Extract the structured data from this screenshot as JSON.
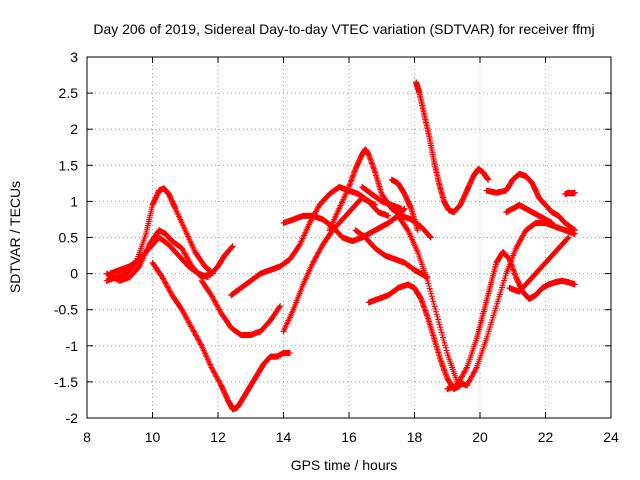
{
  "chart_data": {
    "type": "scatter",
    "title": "Day 206 of 2019, Sidereal Day-to-day VTEC variation (SDTVAR) for receiver ffmj",
    "xlabel": "GPS time / hours",
    "ylabel": "SDTVAR / TECUs",
    "xlim": [
      8,
      24
    ],
    "ylim": [
      -2,
      3
    ],
    "xticks": [
      8,
      10,
      12,
      14,
      16,
      18,
      20,
      22,
      24
    ],
    "yticks": [
      -2,
      -1.5,
      -1,
      -0.5,
      0,
      0.5,
      1,
      1.5,
      2,
      2.5,
      3
    ],
    "grid": true,
    "marker": "plus",
    "color": "#ff0000",
    "series": [
      {
        "x": [
          8.6,
          8.9,
          9.2,
          9.5,
          9.8,
          10.0,
          10.2,
          10.35,
          10.5,
          10.7,
          11.0,
          11.3,
          11.6,
          11.85
        ],
        "y": [
          -0.1,
          -0.05,
          0.0,
          0.15,
          0.55,
          0.95,
          1.15,
          1.18,
          1.1,
          0.9,
          0.6,
          0.3,
          0.1,
          0.0
        ]
      },
      {
        "x": [
          8.6,
          9.0,
          9.3,
          9.6,
          9.9,
          10.2,
          10.4,
          10.6,
          10.9,
          11.2,
          11.5,
          11.8,
          12.0,
          12.2,
          12.45
        ],
        "y": [
          0.0,
          -0.1,
          -0.05,
          0.1,
          0.4,
          0.6,
          0.55,
          0.45,
          0.35,
          0.1,
          -0.05,
          0.0,
          0.1,
          0.25,
          0.38
        ]
      },
      {
        "x": [
          8.7,
          9.0,
          9.3,
          9.6,
          9.9,
          10.2,
          10.5,
          10.8,
          11.1,
          11.4,
          11.7
        ],
        "y": [
          0.0,
          0.05,
          0.1,
          0.2,
          0.35,
          0.5,
          0.4,
          0.25,
          0.1,
          0.0,
          -0.05
        ]
      },
      {
        "x": [
          10.0,
          10.3,
          10.6,
          10.9,
          11.2,
          11.5,
          11.8,
          12.1,
          12.3,
          12.45,
          12.6,
          12.8,
          13.0,
          13.2,
          13.4,
          13.6,
          13.8,
          14.0,
          14.2
        ],
        "y": [
          0.15,
          -0.05,
          -0.3,
          -0.5,
          -0.75,
          -1.0,
          -1.3,
          -1.55,
          -1.75,
          -1.88,
          -1.85,
          -1.7,
          -1.55,
          -1.4,
          -1.25,
          -1.15,
          -1.15,
          -1.1,
          -1.1
        ]
      },
      {
        "x": [
          11.5,
          11.8,
          12.1,
          12.4,
          12.7,
          13.0,
          13.3,
          13.6,
          13.9
        ],
        "y": [
          -0.1,
          -0.3,
          -0.55,
          -0.75,
          -0.85,
          -0.85,
          -0.8,
          -0.65,
          -0.45
        ]
      },
      {
        "x": [
          12.4,
          12.7,
          13.0,
          13.3,
          13.6,
          13.9,
          14.2,
          14.5,
          14.8,
          15.1,
          15.4,
          15.7,
          16.0,
          16.3,
          16.6,
          16.9,
          17.2
        ],
        "y": [
          -0.3,
          -0.2,
          -0.1,
          0.0,
          0.05,
          0.1,
          0.2,
          0.4,
          0.7,
          0.95,
          1.1,
          1.2,
          1.15,
          1.1,
          1.0,
          0.85,
          0.8
        ]
      },
      {
        "x": [
          14.0,
          14.3,
          14.6,
          14.9,
          15.2,
          15.5,
          15.8,
          16.1,
          16.4,
          16.6,
          16.8,
          17.0,
          17.2,
          17.5,
          17.7
        ],
        "y": [
          0.7,
          0.75,
          0.8,
          0.8,
          0.75,
          0.65,
          0.5,
          0.45,
          0.5,
          0.55,
          0.6,
          0.65,
          0.7,
          0.8,
          0.9
        ]
      },
      {
        "x": [
          14.0,
          14.3,
          14.6,
          14.9,
          15.2,
          15.5,
          15.8,
          16.1,
          16.4,
          16.6,
          16.8
        ],
        "y": [
          -0.8,
          -0.5,
          -0.15,
          0.15,
          0.4,
          0.6,
          0.75,
          0.9,
          1.05,
          1.0,
          0.95
        ]
      },
      {
        "x": [
          15.4,
          15.7,
          16.0,
          16.2,
          16.4,
          16.5,
          16.6,
          16.8,
          17.0,
          17.3,
          17.6,
          17.9,
          18.2,
          18.5
        ],
        "y": [
          0.6,
          0.9,
          1.2,
          1.45,
          1.65,
          1.72,
          1.65,
          1.4,
          1.1,
          0.9,
          0.8,
          0.75,
          0.65,
          0.5
        ]
      },
      {
        "x": [
          16.2,
          16.5,
          16.8,
          17.1,
          17.4,
          17.7,
          18.0,
          18.2,
          18.4
        ],
        "y": [
          0.6,
          0.5,
          0.35,
          0.25,
          0.2,
          0.15,
          0.05,
          0.0,
          -0.05
        ]
      },
      {
        "x": [
          16.4,
          16.7,
          17.0,
          17.3,
          17.6
        ],
        "y": [
          1.2,
          1.1,
          1.0,
          0.95,
          0.9
        ]
      },
      {
        "x": [
          17.3,
          17.5,
          17.7,
          17.9,
          18.1
        ],
        "y": [
          1.3,
          1.25,
          1.1,
          0.9,
          0.6
        ]
      },
      {
        "x": [
          16.6,
          16.9,
          17.2,
          17.5,
          17.8,
          18.0,
          18.2,
          18.4,
          18.6,
          18.8,
          19.0,
          19.2,
          19.4
        ],
        "y": [
          -0.4,
          -0.35,
          -0.3,
          -0.2,
          -0.15,
          -0.2,
          -0.35,
          -0.6,
          -0.9,
          -1.2,
          -1.45,
          -1.6,
          -1.55
        ]
      },
      {
        "x": [
          17.5,
          17.8,
          18.1,
          18.4,
          18.7,
          19.0,
          19.3,
          19.6,
          19.9,
          20.2,
          20.5,
          20.8,
          21.1,
          21.4,
          21.7,
          22.0,
          22.3,
          22.6,
          22.9
        ],
        "y": [
          0.8,
          0.6,
          0.3,
          -0.1,
          -0.6,
          -1.1,
          -1.5,
          -1.55,
          -1.3,
          -0.9,
          -0.45,
          0.0,
          0.35,
          0.6,
          0.7,
          0.7,
          0.65,
          0.6,
          0.55
        ]
      },
      {
        "x": [
          18.05,
          18.15,
          18.3,
          18.45,
          18.6,
          18.75,
          18.9,
          19.05,
          19.2,
          19.4,
          19.6,
          19.8,
          19.95,
          20.1,
          20.25
        ],
        "y": [
          2.65,
          2.5,
          2.2,
          1.9,
          1.55,
          1.25,
          1.0,
          0.88,
          0.85,
          0.95,
          1.15,
          1.35,
          1.45,
          1.4,
          1.3
        ]
      },
      {
        "x": [
          20.2,
          20.5,
          20.8,
          21.0,
          21.2,
          21.4,
          21.6,
          21.8,
          22.0,
          22.2,
          22.4,
          22.6,
          22.9
        ],
        "y": [
          1.15,
          1.12,
          1.15,
          1.3,
          1.38,
          1.35,
          1.25,
          1.05,
          0.95,
          0.85,
          0.8,
          0.7,
          0.6
        ]
      },
      {
        "x": [
          20.8,
          21.0,
          21.2,
          21.4,
          21.6,
          21.8,
          22.0,
          22.2
        ],
        "y": [
          0.85,
          0.9,
          0.95,
          0.9,
          0.85,
          0.8,
          0.75,
          0.7
        ]
      },
      {
        "x": [
          19.0,
          19.3,
          19.6,
          19.9,
          20.1,
          20.3,
          20.5,
          20.7,
          20.9,
          21.1,
          21.3,
          21.5,
          21.7,
          21.9,
          22.1,
          22.3,
          22.5,
          22.7,
          22.9
        ],
        "y": [
          -1.6,
          -1.55,
          -1.3,
          -0.9,
          -0.55,
          -0.2,
          0.15,
          0.3,
          0.2,
          -0.05,
          -0.25,
          -0.35,
          -0.3,
          -0.2,
          -0.15,
          -0.12,
          -0.1,
          -0.12,
          -0.15
        ]
      },
      {
        "x": [
          20.9,
          21.2,
          21.5,
          21.8,
          22.1,
          22.4,
          22.7
        ],
        "y": [
          -0.2,
          -0.25,
          -0.1,
          0.05,
          0.2,
          0.35,
          0.5
        ]
      },
      {
        "x": [
          22.6,
          22.7,
          22.8,
          22.9
        ],
        "y": [
          1.1,
          1.12,
          1.11,
          1.12
        ]
      }
    ]
  }
}
